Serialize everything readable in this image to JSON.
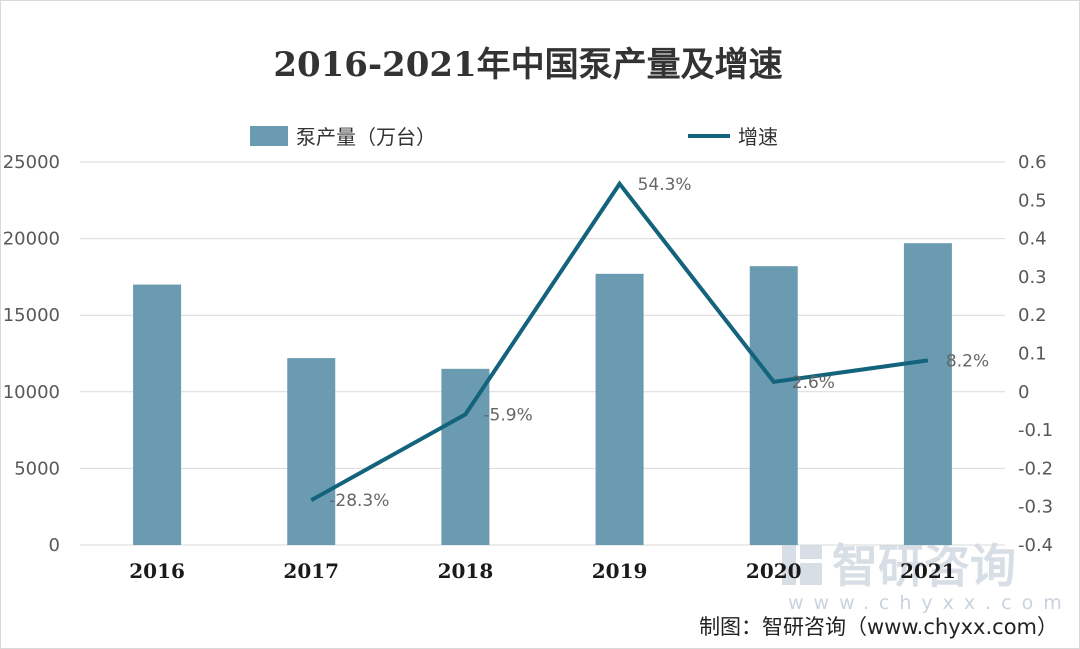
{
  "chart_data": {
    "type": "bar",
    "title": "2016-2021年中国泵产量及增速",
    "categories": [
      "2016",
      "2017",
      "2018",
      "2019",
      "2020",
      "2021"
    ],
    "series": [
      {
        "name": "泵产量（万台）",
        "type": "bar",
        "axis": "left",
        "color": "#6b9bb0",
        "values": [
          17000,
          12200,
          11500,
          17700,
          18200,
          19700
        ]
      },
      {
        "name": "增速",
        "type": "line",
        "axis": "right",
        "color": "#13637c",
        "values": [
          null,
          -0.283,
          -0.059,
          0.543,
          0.026,
          0.082
        ],
        "labels": [
          "",
          "-28.3%",
          "-5.9%",
          "54.3%",
          "2.6%",
          "8.2%"
        ]
      }
    ],
    "y_left": {
      "min": 0,
      "max": 25000,
      "ticks": [
        0,
        5000,
        10000,
        15000,
        20000,
        25000
      ],
      "tick_labels": [
        "0",
        "5000",
        "10000",
        "15000",
        "20000",
        "25000"
      ]
    },
    "y_right": {
      "min": -0.4,
      "max": 0.6,
      "ticks": [
        -0.4,
        -0.3,
        -0.2,
        -0.1,
        0,
        0.1,
        0.2,
        0.3,
        0.4,
        0.5,
        0.6
      ],
      "tick_labels": [
        "-0.4",
        "-0.3",
        "-0.2",
        "-0.1",
        "0",
        "0.1",
        "0.2",
        "0.3",
        "0.4",
        "0.5",
        "0.6"
      ]
    },
    "grid": true,
    "legend_position": "top"
  },
  "footer": {
    "source": "制图：智研咨询（www.chyxx.com）"
  },
  "watermark": {
    "text": "智研咨询",
    "url": "www.chyxx.com"
  }
}
